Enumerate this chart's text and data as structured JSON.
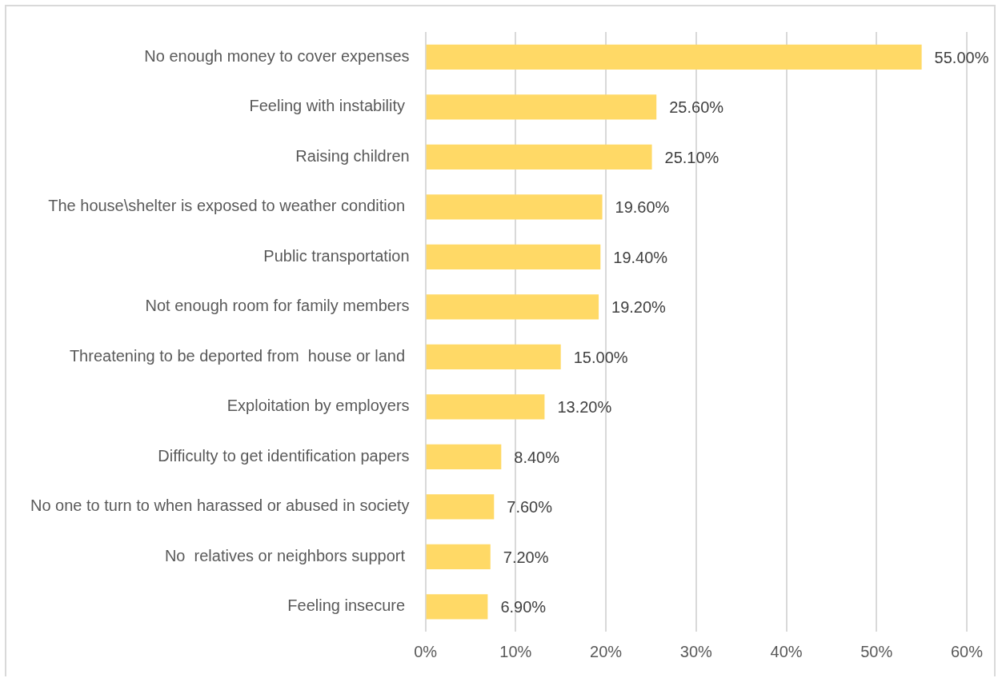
{
  "chart_data": {
    "type": "bar",
    "orientation": "horizontal",
    "categories": [
      "No enough money to cover expenses",
      "Feeling with instability ",
      "Raising children",
      "The house\\shelter is exposed to weather condition ",
      "Public transportation",
      "Not enough room for family members",
      "Threatening to be deported from  house or land ",
      "Exploitation by employers",
      "Difficulty to get identification papers",
      "No one to turn to when harassed or abused in society",
      "No  relatives or neighbors support ",
      "Feeling insecure "
    ],
    "values": [
      55.0,
      25.6,
      25.1,
      19.6,
      19.4,
      19.2,
      15.0,
      13.2,
      8.4,
      7.6,
      7.2,
      6.9
    ],
    "value_labels": [
      "55.00%",
      "25.60%",
      "25.10%",
      "19.60%",
      "19.40%",
      "19.20%",
      "15.00%",
      "13.20%",
      "8.40%",
      "7.60%",
      "7.20%",
      "6.90%"
    ],
    "color": "#ffd966",
    "xlim": [
      0,
      60
    ],
    "xticks": [
      {
        "value": 0,
        "label": "0%"
      },
      {
        "value": 10,
        "label": "10%"
      },
      {
        "value": 20,
        "label": "20%"
      },
      {
        "value": 30,
        "label": "30%"
      },
      {
        "value": 40,
        "label": "40%"
      },
      {
        "value": 50,
        "label": "50%"
      },
      {
        "value": 60,
        "label": "60%"
      }
    ],
    "grid": "x"
  }
}
